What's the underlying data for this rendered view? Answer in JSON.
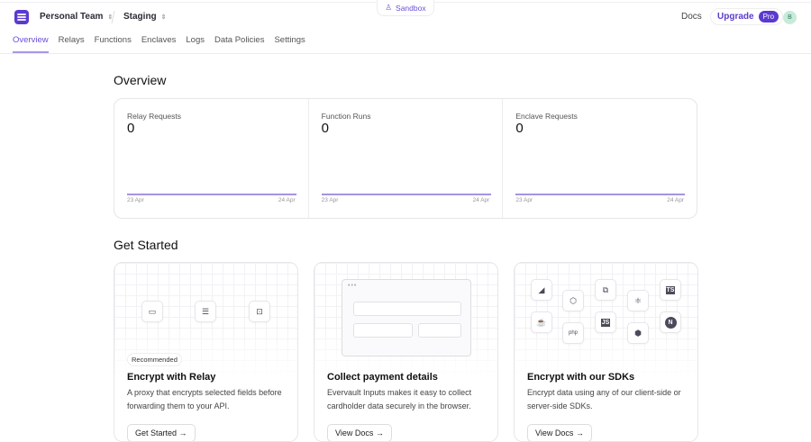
{
  "header": {
    "team": "Personal Team",
    "environment": "Staging",
    "sandbox": "Sandbox",
    "docs": "Docs",
    "upgrade": "Upgrade",
    "pro": "Pro",
    "avatar": "B"
  },
  "nav": [
    {
      "label": "Overview",
      "active": true
    },
    {
      "label": "Relays"
    },
    {
      "label": "Functions"
    },
    {
      "label": "Enclaves"
    },
    {
      "label": "Logs"
    },
    {
      "label": "Data Policies"
    },
    {
      "label": "Settings"
    }
  ],
  "overview": {
    "title": "Overview",
    "stats": [
      {
        "label": "Relay Requests",
        "value": "0",
        "start": "23 Apr",
        "end": "24 Apr"
      },
      {
        "label": "Function Runs",
        "value": "0",
        "start": "23 Apr",
        "end": "24 Apr"
      },
      {
        "label": "Enclave Requests",
        "value": "0",
        "start": "23 Apr",
        "end": "24 Apr"
      }
    ]
  },
  "chart_data": {
    "type": "line",
    "x": [
      "23 Apr",
      "24 Apr"
    ],
    "series": [
      {
        "name": "Relay Requests",
        "values": [
          0,
          0
        ]
      },
      {
        "name": "Function Runs",
        "values": [
          0,
          0
        ]
      },
      {
        "name": "Enclave Requests",
        "values": [
          0,
          0
        ]
      }
    ],
    "color": "#8b6fd6"
  },
  "get_started": {
    "title": "Get Started",
    "cards": [
      {
        "badge": "Recommended",
        "title": "Encrypt with Relay",
        "desc": "A proxy that encrypts selected fields before forwarding them to your API.",
        "button": "Get Started →"
      },
      {
        "title": "Collect payment details",
        "desc": "Evervault Inputs makes it easy to collect cardholder data securely in the browser.",
        "button": "View Docs →"
      },
      {
        "title": "Encrypt with our SDKs",
        "desc": "Encrypt data using any of our client-side or server-side SDKs.",
        "button": "View Docs →"
      }
    ]
  },
  "sdk_icons": [
    "swift-icon",
    "nodejs-icon",
    "python-icon",
    "react-icon",
    "typescript-icon",
    "java-icon",
    "php-icon",
    "javascript-icon",
    "ruby-icon",
    "nextjs-icon"
  ],
  "sdk_labels": {
    "js": "JS",
    "ts": "TS",
    "php": "php",
    "next": "N"
  }
}
